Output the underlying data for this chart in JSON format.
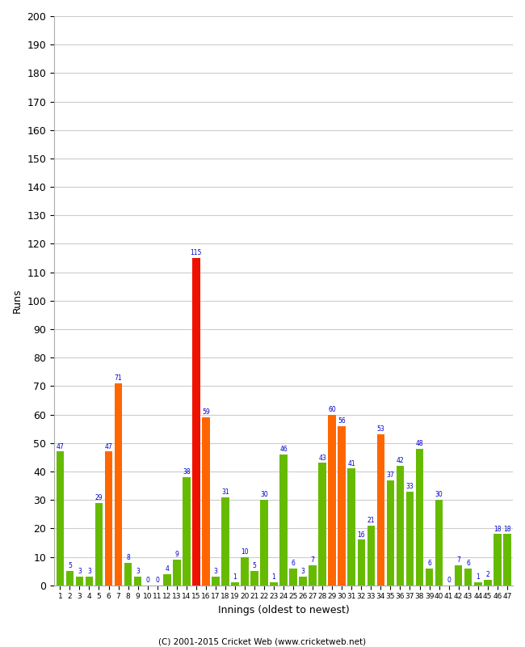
{
  "xlabel": "Innings (oldest to newest)",
  "ylabel": "Runs",
  "ylim": [
    0,
    200
  ],
  "yticks": [
    0,
    10,
    20,
    30,
    40,
    50,
    60,
    70,
    80,
    90,
    100,
    110,
    120,
    130,
    140,
    150,
    160,
    170,
    180,
    190,
    200
  ],
  "innings": [
    1,
    2,
    3,
    4,
    5,
    6,
    7,
    8,
    9,
    10,
    11,
    12,
    13,
    14,
    15,
    16,
    17,
    18,
    19,
    20,
    21,
    22,
    23,
    24,
    25,
    26,
    27,
    28,
    29,
    30,
    31,
    32,
    33,
    34,
    35,
    36,
    37,
    38,
    39,
    40,
    41,
    42,
    43,
    44,
    45,
    46,
    47
  ],
  "values": [
    47,
    5,
    3,
    3,
    29,
    47,
    71,
    8,
    3,
    0,
    0,
    4,
    9,
    38,
    115,
    59,
    3,
    31,
    1,
    10,
    5,
    30,
    1,
    46,
    6,
    3,
    7,
    43,
    60,
    56,
    41,
    16,
    21,
    53,
    37,
    42,
    33,
    48,
    6,
    30,
    0,
    7,
    6,
    1,
    2,
    18,
    18
  ],
  "colors": [
    "#66bb00",
    "#66bb00",
    "#66bb00",
    "#66bb00",
    "#66bb00",
    "#ff6600",
    "#ff6600",
    "#66bb00",
    "#66bb00",
    "#66bb00",
    "#66bb00",
    "#66bb00",
    "#66bb00",
    "#66bb00",
    "#ee1100",
    "#ff6600",
    "#66bb00",
    "#66bb00",
    "#66bb00",
    "#66bb00",
    "#66bb00",
    "#66bb00",
    "#66bb00",
    "#66bb00",
    "#66bb00",
    "#66bb00",
    "#66bb00",
    "#66bb00",
    "#ff6600",
    "#ff6600",
    "#66bb00",
    "#66bb00",
    "#66bb00",
    "#ff6600",
    "#66bb00",
    "#66bb00",
    "#66bb00",
    "#66bb00",
    "#66bb00",
    "#66bb00",
    "#66bb00",
    "#66bb00",
    "#66bb00",
    "#66bb00",
    "#66bb00",
    "#66bb00",
    "#66bb00"
  ],
  "background_color": "#ffffff",
  "grid_color": "#cccccc",
  "label_color": "#0000cc",
  "footer": "(C) 2001-2015 Cricket Web (www.cricketweb.net)"
}
